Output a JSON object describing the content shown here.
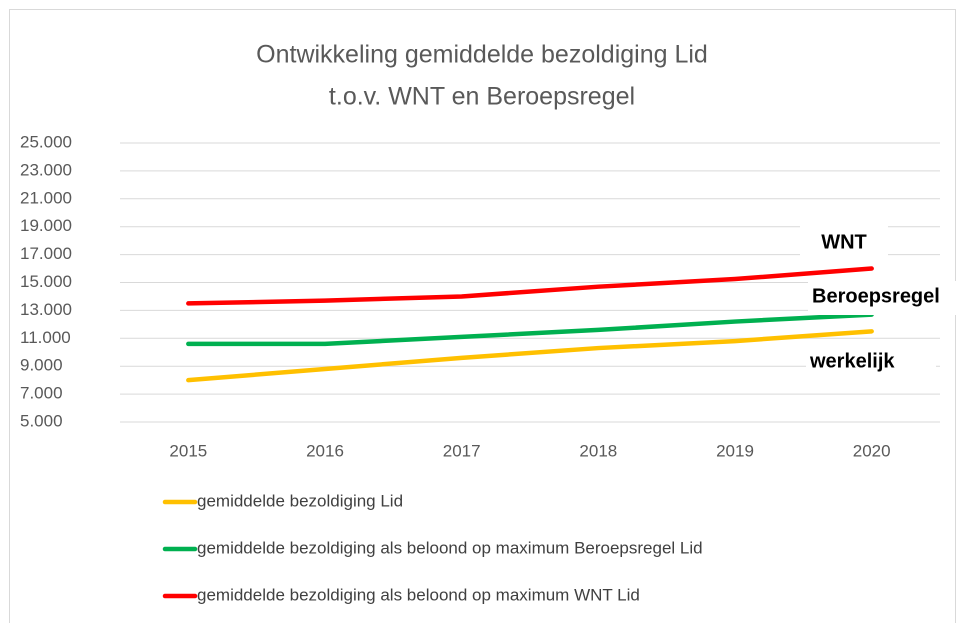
{
  "chart_data": {
    "type": "line",
    "title": [
      "Ontwikkeling gemiddelde bezoldiging Lid",
      "t.o.v. WNT en Beroepsregel"
    ],
    "categories": [
      "2015",
      "2016",
      "2017",
      "2018",
      "2019",
      "2020"
    ],
    "series": [
      {
        "name": "gemiddelde bezoldiging Lid",
        "color": "#ffc000",
        "values": [
          8000,
          8800,
          9600,
          10300,
          10800,
          11500
        ]
      },
      {
        "name": "gemiddelde bezoldiging als beloond op maximum Beroepsregel Lid",
        "color": "#00b050",
        "values": [
          10600,
          10600,
          11100,
          11600,
          12200,
          12700
        ]
      },
      {
        "name": "gemiddelde bezoldiging als beloond op maximum WNT Lid",
        "color": "#ff0000",
        "values": [
          13500,
          13700,
          14000,
          14700,
          15250,
          16000
        ]
      }
    ],
    "annotations": [
      "WNT",
      "Beroepsregel",
      "werkelijk"
    ],
    "ylim": [
      5000,
      25000
    ],
    "yticks": [
      {
        "value": 5000,
        "label": "5.000"
      },
      {
        "value": 7000,
        "label": "7.000"
      },
      {
        "value": 9000,
        "label": "9.000"
      },
      {
        "value": 11000,
        "label": "11.000"
      },
      {
        "value": 13000,
        "label": "13.000"
      },
      {
        "value": 15000,
        "label": "15.000"
      },
      {
        "value": 17000,
        "label": "17.000"
      },
      {
        "value": 19000,
        "label": "19.000"
      },
      {
        "value": 21000,
        "label": "21.000"
      },
      {
        "value": 23000,
        "label": "23.000"
      },
      {
        "value": 25000,
        "label": "25.000"
      }
    ],
    "grid": true
  }
}
